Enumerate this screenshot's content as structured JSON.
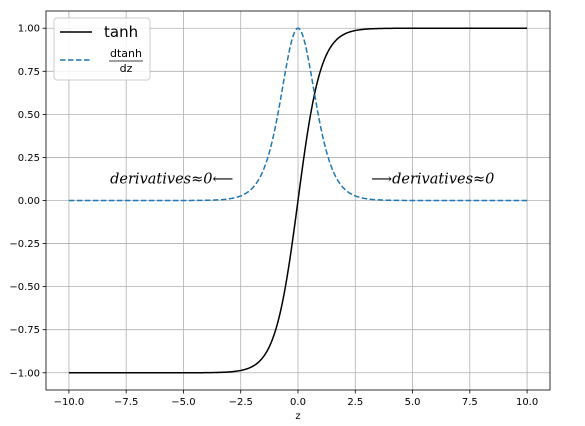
{
  "chart_data": {
    "type": "line",
    "xlabel": "z",
    "ylabel": "",
    "xlim": [
      -11,
      11
    ],
    "ylim": [
      -1.1,
      1.1
    ],
    "xticks": [
      -10,
      -7.5,
      -5,
      -2.5,
      0,
      2.5,
      5,
      7.5,
      10
    ],
    "xtick_labels": [
      "−10.0",
      "−7.5",
      "−5.0",
      "−2.5",
      "0.0",
      "2.5",
      "5.0",
      "7.5",
      "10.0"
    ],
    "yticks": [
      -1,
      -0.75,
      -0.5,
      -0.25,
      0,
      0.25,
      0.5,
      0.75,
      1
    ],
    "ytick_labels": [
      "−1.00",
      "−0.75",
      "−0.50",
      "−0.25",
      "0.00",
      "0.25",
      "0.50",
      "0.75",
      "1.00"
    ],
    "grid": true,
    "legend_position": "top-left",
    "x_range": [
      -10,
      10
    ],
    "series": [
      {
        "name": "tanh",
        "function": "tanh(z)",
        "color": "#000000",
        "dash": "solid"
      },
      {
        "name_numerator": "dtanh",
        "name_denominator": "dz",
        "function": "1 - tanh(z)^2",
        "color": "#1f77b4",
        "dash": "dashed"
      }
    ],
    "annotations": [
      {
        "text": "derivatives≈0⟵",
        "x": -8.2,
        "y": 0.1
      },
      {
        "text": "⟶derivatives≈0",
        "x": 3.2,
        "y": 0.1
      }
    ]
  }
}
